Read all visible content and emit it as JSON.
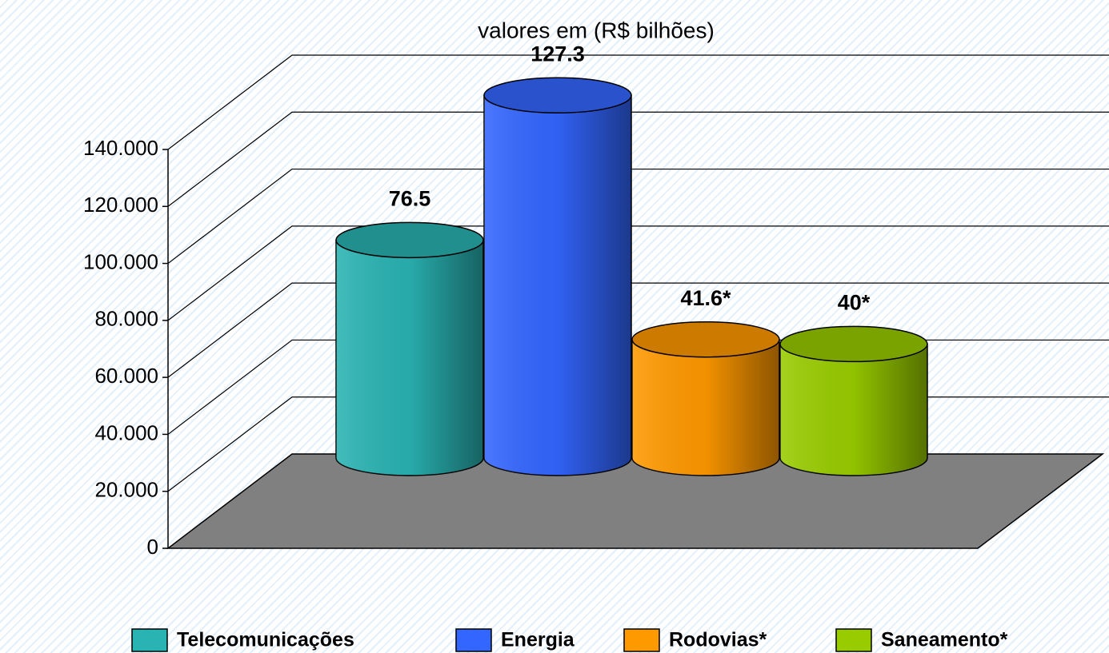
{
  "chart_data": {
    "type": "bar3d",
    "title": "valores em (R$ bilhões)",
    "series": [
      {
        "name": "Telecomunicações",
        "color": "#2ab3b3",
        "values": [
          76.5
        ]
      },
      {
        "name": "Energia",
        "color": "#3366ff",
        "values": [
          127.3
        ]
      },
      {
        "name": "Rodovias*",
        "color": "#ff9900",
        "values": [
          41.6
        ],
        "value_labels": [
          "41.6*"
        ]
      },
      {
        "name": "Saneamento*",
        "color": "#99cc00",
        "values": [
          40
        ],
        "value_labels": [
          "40*"
        ]
      }
    ],
    "ylim": [
      0,
      140
    ],
    "yticks": [
      0,
      {
        "value": 20,
        "label": "20.000"
      },
      {
        "value": 40,
        "label": "40.000"
      },
      {
        "value": 60,
        "label": "60.000"
      },
      {
        "value": 80,
        "label": "80.000"
      },
      {
        "value": 100,
        "label": "100.000"
      },
      {
        "value": 120,
        "label": "120.000"
      },
      {
        "value": 140,
        "label": "140.000"
      }
    ],
    "grid": true,
    "legend": "bottom"
  }
}
